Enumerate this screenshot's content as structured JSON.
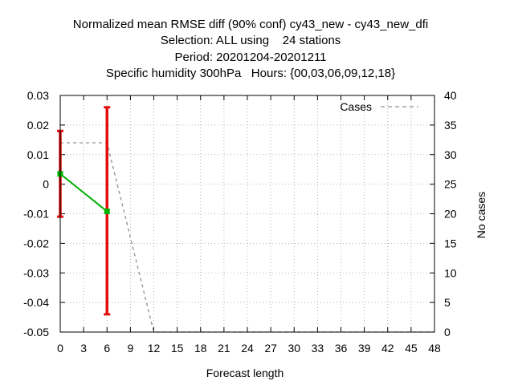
{
  "chart_data": {
    "type": "line",
    "title_lines": [
      "Normalized mean RMSE diff (90% conf) cy43_new - cy43_new_dfi",
      "Selection: ALL using    24 stations",
      "Period: 20201204-20201211",
      "Specific humidity 300hPa   Hours: {00,03,06,09,12,18}"
    ],
    "xlabel": "Forecast length",
    "ylabel": "",
    "y2label": "No cases",
    "xlim": [
      0,
      48
    ],
    "ylim": [
      -0.05,
      0.03
    ],
    "y2lim": [
      0,
      40
    ],
    "x_ticks": [
      "0",
      "3",
      "6",
      "9",
      "12",
      "15",
      "18",
      "21",
      "24",
      "27",
      "30",
      "33",
      "36",
      "39",
      "42",
      "45",
      "48"
    ],
    "y_ticks": [
      "0.03",
      "0.02",
      "0.01",
      "0",
      "-0.01",
      "-0.02",
      "-0.03",
      "-0.04",
      "-0.05"
    ],
    "y2_ticks": [
      "40",
      "35",
      "30",
      "25",
      "20",
      "15",
      "10",
      "5",
      "0"
    ],
    "grid": true,
    "legend_position": "top-right",
    "legend_label": "Cases",
    "series": [
      {
        "x": [
          0,
          6
        ],
        "y": [
          0.0035,
          -0.0092
        ],
        "ci_low": [
          -0.011,
          -0.044
        ],
        "ci_high": [
          0.018,
          0.026
        ],
        "line_color": "#00b000",
        "ci_color": "#e01010"
      }
    ],
    "cases": {
      "name": "Cases",
      "x": [
        0,
        3,
        6,
        12,
        48
      ],
      "y": [
        32,
        32,
        32,
        0,
        0
      ],
      "color": "#909090"
    }
  }
}
